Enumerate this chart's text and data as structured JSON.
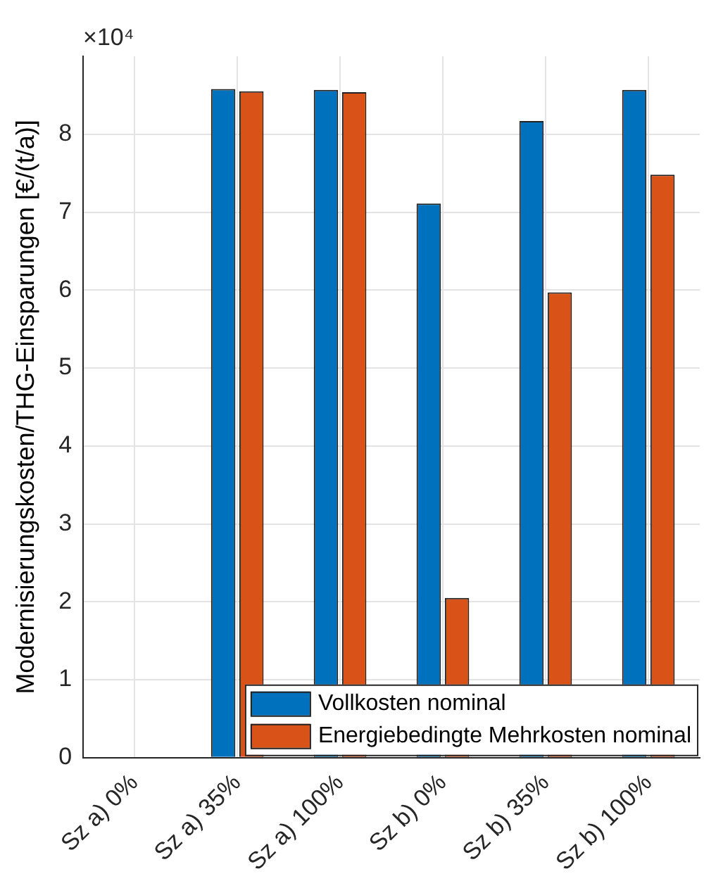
{
  "chart_data": {
    "type": "bar",
    "ylabel": "Modernisierungskosten/THG-Einsparungen [€/(t/a)]",
    "annotations": [
      "×10⁴"
    ],
    "categories": [
      "Sz a) 0%",
      "Sz a) 35%",
      "Sz a) 100%",
      "Sz b) 0%",
      "Sz b) 35%",
      "Sz b) 100%"
    ],
    "series": [
      {
        "name": "Vollkosten nominal",
        "color": "#0072bd",
        "values": [
          0,
          8.58,
          8.57,
          7.11,
          8.17,
          8.57
        ]
      },
      {
        "name": "Energiebedingte Mehrkosten nominal",
        "color": "#d95319",
        "values": [
          0,
          8.55,
          8.54,
          2.05,
          5.97,
          7.48
        ]
      }
    ],
    "ylim": [
      0,
      9
    ],
    "yticks": [
      0,
      1,
      2,
      3,
      4,
      5,
      6,
      7,
      8
    ],
    "grid": true,
    "legend": "bottom right"
  }
}
